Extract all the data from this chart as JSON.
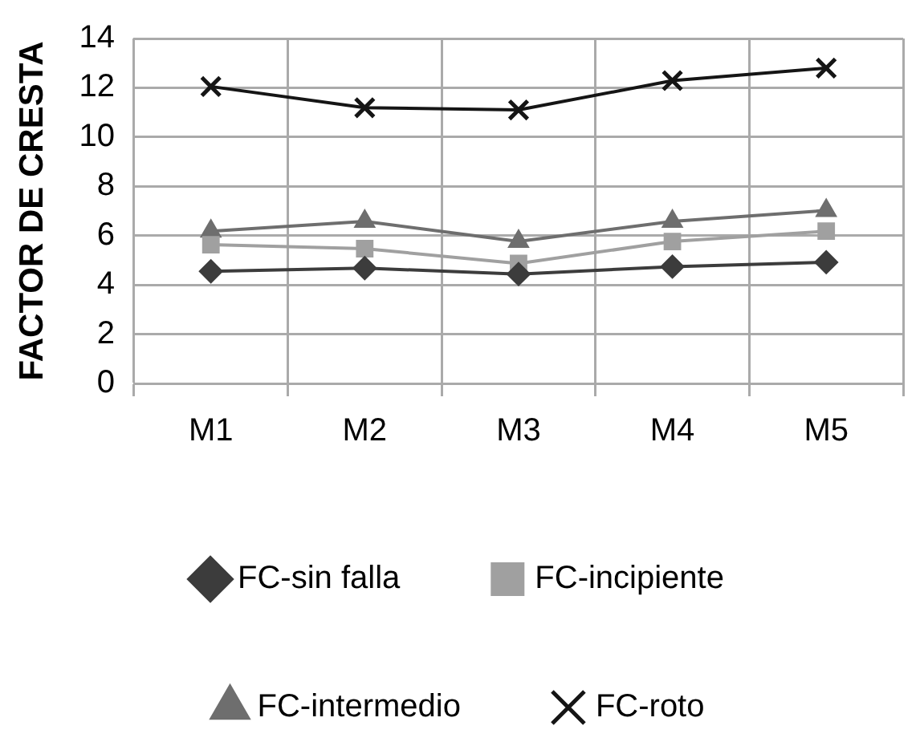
{
  "chart_data": {
    "type": "line",
    "ylabel": "FACTOR DE CRESTA",
    "categories": [
      "M1",
      "M2",
      "M3",
      "M4",
      "M5"
    ],
    "ylim": [
      0,
      14
    ],
    "yticks": [
      0,
      2,
      4,
      6,
      8,
      10,
      12,
      14
    ],
    "grid": true,
    "legend": "bottom",
    "line_style": "solid",
    "series": [
      {
        "name": "FC-sin falla",
        "color": "#3c3c3c",
        "marker": "diamond",
        "values": [
          4.55,
          4.68,
          4.44,
          4.74,
          4.92
        ]
      },
      {
        "name": "FC-incipiente",
        "color": "#a0a0a0",
        "marker": "square",
        "values": [
          5.63,
          5.47,
          4.87,
          5.76,
          6.18
        ]
      },
      {
        "name": "FC-intermedio",
        "color": "#6e6e6e",
        "marker": "triangle",
        "values": [
          6.18,
          6.58,
          5.76,
          6.58,
          7.02
        ]
      },
      {
        "name": "FC-roto",
        "color": "#151515",
        "marker": "cross",
        "values": [
          12.05,
          11.19,
          11.1,
          12.29,
          12.8
        ]
      }
    ]
  }
}
